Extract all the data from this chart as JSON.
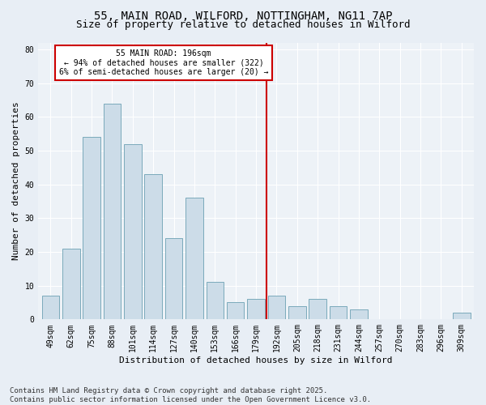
{
  "title1": "55, MAIN ROAD, WILFORD, NOTTINGHAM, NG11 7AP",
  "title2": "Size of property relative to detached houses in Wilford",
  "xlabel": "Distribution of detached houses by size in Wilford",
  "ylabel": "Number of detached properties",
  "categories": [
    "49sqm",
    "62sqm",
    "75sqm",
    "88sqm",
    "101sqm",
    "114sqm",
    "127sqm",
    "140sqm",
    "153sqm",
    "166sqm",
    "179sqm",
    "192sqm",
    "205sqm",
    "218sqm",
    "231sqm",
    "244sqm",
    "257sqm",
    "270sqm",
    "283sqm",
    "296sqm",
    "309sqm"
  ],
  "values": [
    7,
    21,
    54,
    64,
    52,
    43,
    24,
    36,
    11,
    5,
    6,
    7,
    4,
    6,
    4,
    3,
    0,
    0,
    0,
    0,
    2
  ],
  "bar_color": "#ccdce8",
  "bar_edge_color": "#7aaabb",
  "vline_index": 11,
  "vline_color": "#cc0000",
  "annotation_text": "55 MAIN ROAD: 196sqm\n← 94% of detached houses are smaller (322)\n6% of semi-detached houses are larger (20) →",
  "annotation_box_facecolor": "#ffffff",
  "annotation_box_edgecolor": "#cc0000",
  "ylim": [
    0,
    82
  ],
  "yticks": [
    0,
    10,
    20,
    30,
    40,
    50,
    60,
    70,
    80
  ],
  "bg_color": "#e8eef5",
  "plot_bg_color": "#edf2f7",
  "grid_color": "#ffffff",
  "footer": "Contains HM Land Registry data © Crown copyright and database right 2025.\nContains public sector information licensed under the Open Government Licence v3.0.",
  "title_fontsize": 10,
  "subtitle_fontsize": 9,
  "axis_label_fontsize": 8,
  "tick_fontsize": 7,
  "annotation_fontsize": 7,
  "footer_fontsize": 6.5
}
